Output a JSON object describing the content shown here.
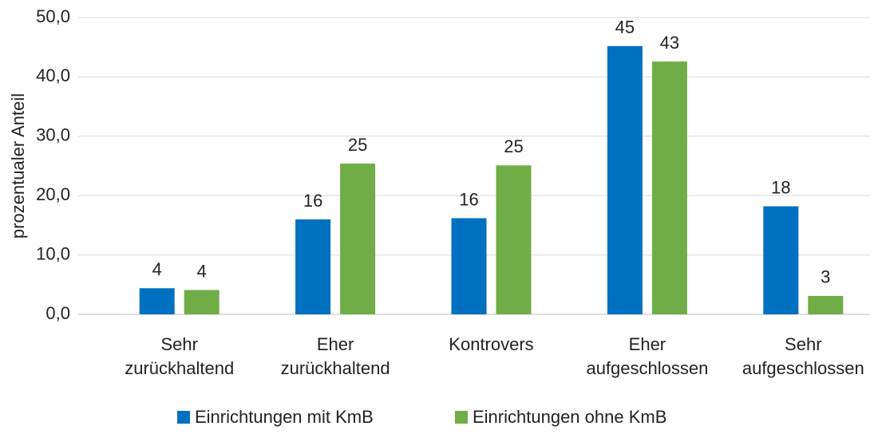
{
  "chart_data": {
    "type": "bar",
    "y_axis_label": "prozentualer Anteil",
    "categories": [
      "Sehr zurückhaltend",
      "Eher zurückhaltend",
      "Kontrovers",
      "Eher aufgeschlossen",
      "Sehr aufgeschlossen"
    ],
    "series": [
      {
        "name": "Einrichtungen mit KmB",
        "color": "#0070c0",
        "values": [
          4.4,
          16.0,
          16.2,
          45.2,
          18.2
        ],
        "value_labels": [
          "4",
          "16",
          "16",
          "45",
          "18"
        ]
      },
      {
        "name": "Einrichtungen ohne KmB",
        "color": "#70ad47",
        "values": [
          4.1,
          25.4,
          25.1,
          42.6,
          3.1
        ],
        "value_labels": [
          "4",
          "25",
          "25",
          "43",
          "3"
        ]
      }
    ],
    "ylim": [
      0,
      50
    ],
    "yticks": [
      {
        "value": 0,
        "label": "0,0"
      },
      {
        "value": 10,
        "label": "10,0"
      },
      {
        "value": 20,
        "label": "20,0"
      },
      {
        "value": 30,
        "label": "30,0"
      },
      {
        "value": 40,
        "label": "40,0"
      },
      {
        "value": 50,
        "label": "50,0"
      }
    ],
    "grid": true,
    "legend": "bottom"
  }
}
